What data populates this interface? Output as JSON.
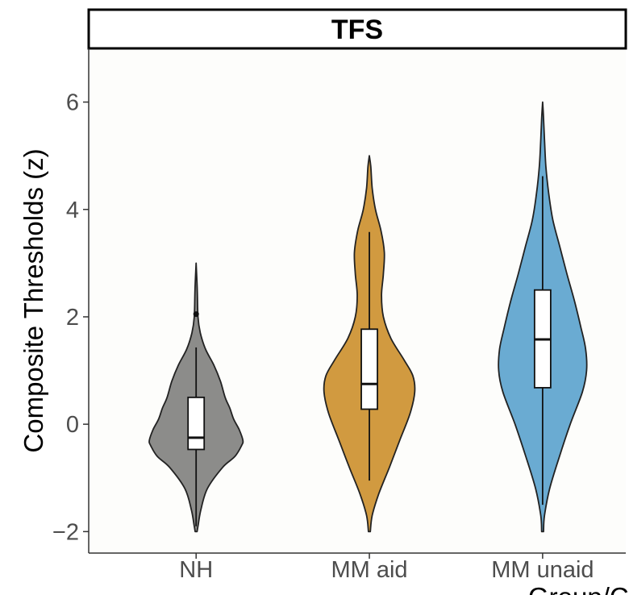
{
  "chart_data": {
    "type": "violin",
    "facet_title": "TFS",
    "ylabel": "Composite Thresholds (z)",
    "xlabel": "Group/C",
    "ylim": [
      -2.4,
      7.0
    ],
    "yticks": [
      -2,
      0,
      2,
      4,
      6
    ],
    "ytick_labels": [
      "−2",
      "0",
      "2",
      "4",
      "6"
    ],
    "grid": false,
    "categories": [
      "NH",
      "MM aid",
      "MM unaid"
    ],
    "groups": [
      {
        "name": "NH",
        "color": "#8c8c8a",
        "violin_profile": [
          [
            -2.0,
            0.02
          ],
          [
            -1.9,
            0.04
          ],
          [
            -1.6,
            0.1
          ],
          [
            -1.2,
            0.24
          ],
          [
            -0.8,
            0.57
          ],
          [
            -0.6,
            0.83
          ],
          [
            -0.4,
            0.97
          ],
          [
            -0.3,
            1.0
          ],
          [
            -0.1,
            0.92
          ],
          [
            0.1,
            0.8
          ],
          [
            0.3,
            0.72
          ],
          [
            0.5,
            0.62
          ],
          [
            0.8,
            0.52
          ],
          [
            1.1,
            0.38
          ],
          [
            1.4,
            0.2
          ],
          [
            1.7,
            0.09
          ],
          [
            2.0,
            0.04
          ],
          [
            2.5,
            0.025
          ],
          [
            3.0,
            0.0
          ]
        ],
        "box": {
          "q1": -0.47,
          "median": -0.25,
          "q3": 0.5,
          "whisker_low": -1.9,
          "whisker_high": 1.43
        },
        "outliers": [
          2.05
        ]
      },
      {
        "name": "MM aid",
        "color": "#d19a40",
        "violin_profile": [
          [
            -2.0,
            0.02
          ],
          [
            -1.7,
            0.06
          ],
          [
            -1.3,
            0.2
          ],
          [
            -0.8,
            0.43
          ],
          [
            -0.3,
            0.65
          ],
          [
            0.2,
            0.87
          ],
          [
            0.6,
            0.97
          ],
          [
            0.9,
            0.93
          ],
          [
            1.2,
            0.74
          ],
          [
            1.6,
            0.46
          ],
          [
            2.0,
            0.3
          ],
          [
            2.4,
            0.26
          ],
          [
            2.8,
            0.3
          ],
          [
            3.2,
            0.32
          ],
          [
            3.6,
            0.25
          ],
          [
            4.0,
            0.13
          ],
          [
            4.4,
            0.06
          ],
          [
            4.8,
            0.03
          ],
          [
            5.0,
            0.0
          ]
        ],
        "box": {
          "q1": 0.28,
          "median": 0.75,
          "q3": 1.77,
          "whisker_low": -1.05,
          "whisker_high": 3.58
        },
        "outliers": []
      },
      {
        "name": "MM unaid",
        "color": "#6aabd2",
        "violin_profile": [
          [
            -2.0,
            0.02
          ],
          [
            -1.7,
            0.04
          ],
          [
            -1.2,
            0.15
          ],
          [
            -0.6,
            0.36
          ],
          [
            0.0,
            0.59
          ],
          [
            0.6,
            0.85
          ],
          [
            1.0,
            0.94
          ],
          [
            1.4,
            0.92
          ],
          [
            1.8,
            0.82
          ],
          [
            2.3,
            0.68
          ],
          [
            2.8,
            0.52
          ],
          [
            3.3,
            0.37
          ],
          [
            3.8,
            0.22
          ],
          [
            4.3,
            0.13
          ],
          [
            4.8,
            0.07
          ],
          [
            5.3,
            0.04
          ],
          [
            5.7,
            0.02
          ],
          [
            6.0,
            0.0
          ]
        ],
        "box": {
          "q1": 0.68,
          "median": 1.58,
          "q3": 2.5,
          "whisker_low": -1.5,
          "whisker_high": 4.62
        },
        "outliers": []
      }
    ]
  }
}
